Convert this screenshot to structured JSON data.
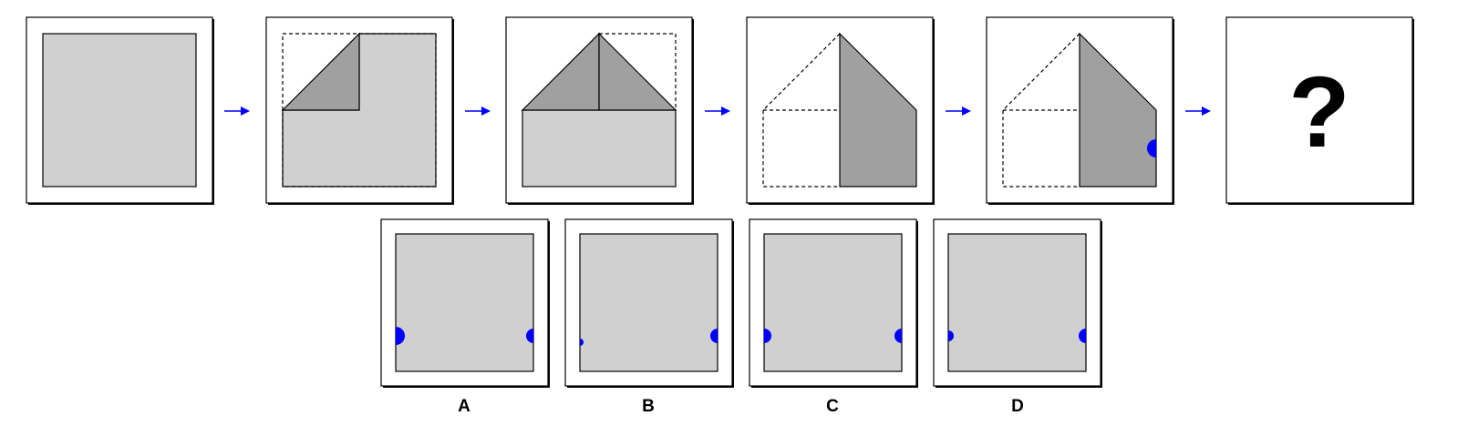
{
  "question_mark": "?",
  "options": [
    {
      "label": "A"
    },
    {
      "label": "B"
    },
    {
      "label": "C"
    },
    {
      "label": "D"
    }
  ],
  "colors": {
    "paper": "#d0d0d0",
    "flap": "#a0a0a0",
    "hole": "#0000ff",
    "arrow": "#0000ff"
  }
}
